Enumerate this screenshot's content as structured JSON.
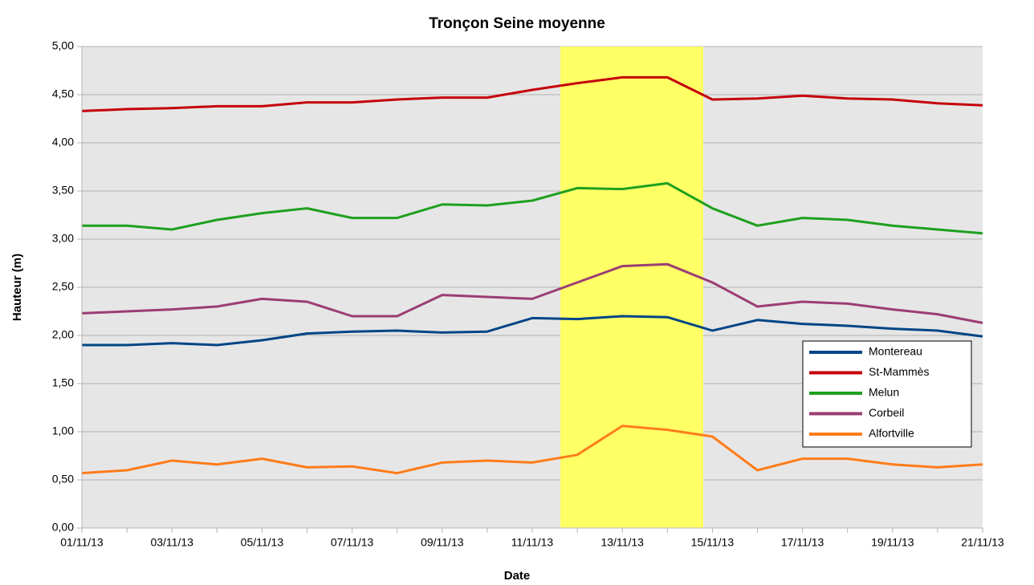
{
  "chart_data": {
    "type": "line",
    "title": "Tronçon Seine moyenne",
    "xlabel": "Date",
    "ylabel": "Hauteur (m)",
    "x": [
      "01/11/13",
      "02/11/13",
      "03/11/13",
      "04/11/13",
      "05/11/13",
      "06/11/13",
      "07/11/13",
      "08/11/13",
      "09/11/13",
      "10/11/13",
      "11/11/13",
      "12/11/13",
      "13/11/13",
      "14/11/13",
      "15/11/13",
      "16/11/13",
      "17/11/13",
      "18/11/13",
      "19/11/13",
      "20/11/13",
      "21/11/13"
    ],
    "xlabel_every": 2,
    "series": [
      {
        "name": "Montereau",
        "color": "#004586",
        "values": [
          1.9,
          1.9,
          1.92,
          1.9,
          1.95,
          2.02,
          2.04,
          2.05,
          2.03,
          2.04,
          2.18,
          2.17,
          2.2,
          2.19,
          2.05,
          2.16,
          2.12,
          2.1,
          2.07,
          2.05,
          1.99
        ]
      },
      {
        "name": "St-Mammès",
        "color": "#c5000b",
        "values": [
          4.33,
          4.35,
          4.36,
          4.38,
          4.38,
          4.42,
          4.42,
          4.45,
          4.47,
          4.47,
          4.55,
          4.62,
          4.68,
          4.68,
          4.45,
          4.46,
          4.49,
          4.46,
          4.45,
          4.41,
          4.39
        ]
      },
      {
        "name": "Melun",
        "color": "#1ea01e",
        "values": [
          3.14,
          3.14,
          3.1,
          3.2,
          3.27,
          3.32,
          3.22,
          3.22,
          3.36,
          3.35,
          3.4,
          3.53,
          3.52,
          3.58,
          3.32,
          3.14,
          3.22,
          3.2,
          3.14,
          3.1,
          3.06
        ]
      },
      {
        "name": "Corbeil",
        "color": "#9b3d73",
        "values": [
          2.23,
          2.25,
          2.27,
          2.3,
          2.38,
          2.35,
          2.2,
          2.2,
          2.42,
          2.4,
          2.38,
          2.55,
          2.72,
          2.74,
          2.55,
          2.3,
          2.35,
          2.33,
          2.27,
          2.22,
          2.13
        ]
      },
      {
        "name": "Alfortville",
        "color": "#ff7c1a",
        "values": [
          0.57,
          0.6,
          0.7,
          0.66,
          0.72,
          0.63,
          0.64,
          0.57,
          0.68,
          0.7,
          0.68,
          0.76,
          1.06,
          1.02,
          0.95,
          0.6,
          0.72,
          0.72,
          0.66,
          0.63,
          0.66
        ]
      }
    ],
    "ylim": [
      0,
      5
    ],
    "yticks": [
      {
        "value": 0,
        "label": "0,00"
      },
      {
        "value": 0.5,
        "label": "0,50"
      },
      {
        "value": 1,
        "label": "1,00"
      },
      {
        "value": 1.5,
        "label": "1,50"
      },
      {
        "value": 2,
        "label": "2,00"
      },
      {
        "value": 2.5,
        "label": "2,50"
      },
      {
        "value": 3,
        "label": "3,00"
      },
      {
        "value": 3.5,
        "label": "3,50"
      },
      {
        "value": 4,
        "label": "4,00"
      },
      {
        "value": 4.5,
        "label": "4,50"
      },
      {
        "value": 5,
        "label": "5,00"
      }
    ],
    "grid": true,
    "legend": "lower right"
  }
}
